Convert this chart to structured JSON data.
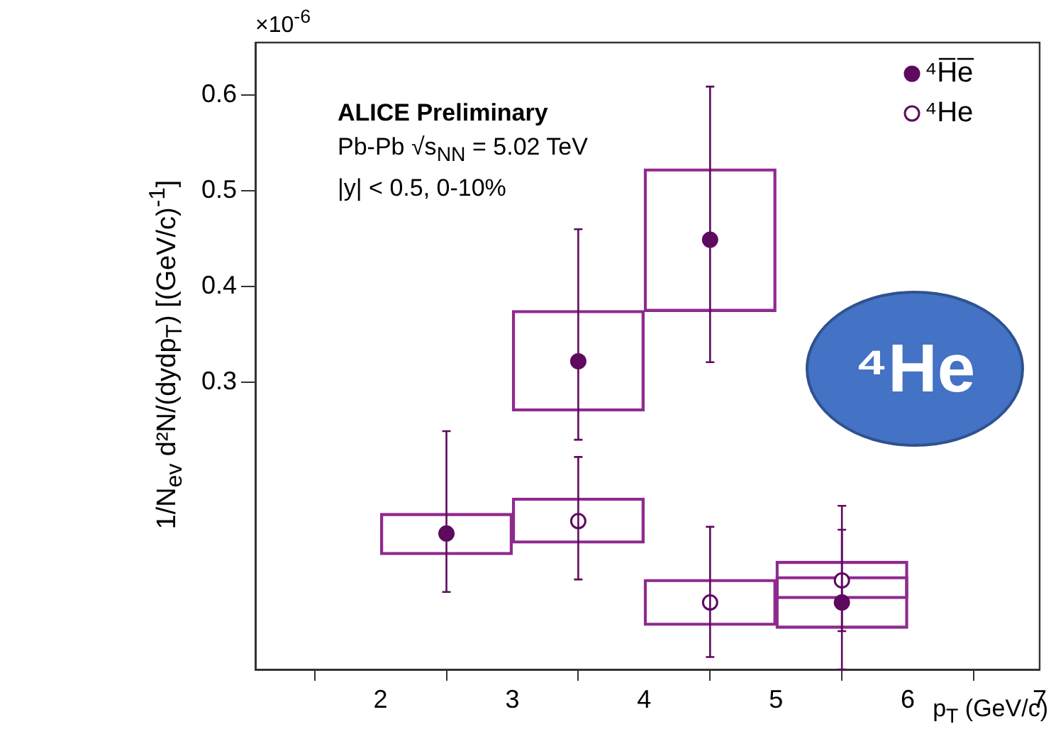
{
  "chart_data": {
    "type": "scatter",
    "xlabel": "p$_{T}$ (GeV/c)",
    "ylabel": "1/N$_{ev}$ d²N/(dydp$_{T}$) [(GeV/c)$^{-1}$]",
    "xlim": [
      1.05,
      7
    ],
    "xticks": [
      2,
      3,
      4,
      5,
      6,
      7
    ],
    "ylim": [
      0,
      0.655
    ],
    "yticks": [
      0.3,
      0.4,
      0.5,
      0.6
    ],
    "grid": false,
    "legend": "top right",
    "marker": "circle",
    "annotations": [
      "ALICE Preliminary",
      "Pb-Pb √s$_{NN}$ = 5.02 TeV",
      "|y| < 0.5, 0-10%",
      "×10$^{-6}$",
      "⁴He"
    ],
    "series": [
      {
        "name": "⁴H̅e̅",
        "color": "#5e0a5e",
        "x": [
          2.5,
          3.5,
          4.5,
          5.5
        ],
        "values": [
          0.142,
          0.322,
          0.449,
          0.07
        ],
        "errors": [
          [
            0.081,
            0.249
          ],
          [
            0.24,
            0.46
          ],
          [
            0.321,
            0.609
          ],
          [
            0.0,
            0.171
          ]
        ]
      },
      {
        "name": "⁴He",
        "color": "#5e0a5e",
        "x": [
          3.5,
          4.5,
          5.5
        ],
        "values": [
          0.155,
          0.07,
          0.093
        ],
        "errors": [
          [
            0.094,
            0.222
          ],
          [
            0.013,
            0.149
          ],
          [
            0.04,
            0.146
          ]
        ]
      },
      {
        "color": "#8e2a8e",
        "type": "bar",
        "x": [
          2.5,
          3.5,
          4.5,
          5.5
        ],
        "base": [
          0.12,
          0.27,
          0.374,
          0.043
        ],
        "values": [
          0.043,
          0.105,
          0.149,
          0.054
        ]
      },
      {
        "color": "#8e2a8e",
        "type": "bar",
        "x": [
          3.5,
          4.5,
          5.5
        ],
        "base": [
          0.132,
          0.046,
          0.074
        ],
        "values": [
          0.047,
          0.048,
          0.039
        ]
      }
    ]
  }
}
